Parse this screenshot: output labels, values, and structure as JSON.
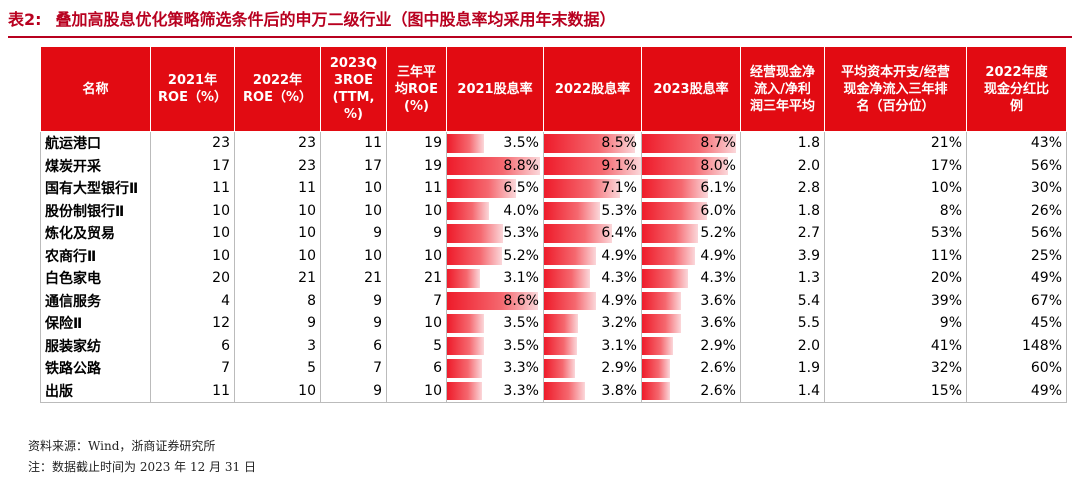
{
  "caption": {
    "table_no": "表2:",
    "text": "叠加高股息优化策略筛选条件后的申万二级行业（图中股息率均采用年末数据）"
  },
  "headers": [
    "名称",
    "2021年\nROE（%）",
    "2022年\nROE（%）",
    "2023Q\n3ROE\n(TTM,\n%)",
    "三年平\n均ROE\n(%)",
    "2021股息率",
    "2022股息率",
    "2023股息率",
    "经营现金净\n流入/净利\n润三年平均",
    "平均资本开支/经营\n现金净流入三年排\n名（百分位）",
    "2022年度\n现金分红比\n例"
  ],
  "colors": {
    "header_bg": "#e20b12",
    "accent": "#b8001f",
    "bar": "#ee1b2a"
  },
  "bar_max": 9.1,
  "rows": [
    {
      "name": "航运港口",
      "roe21": "23",
      "roe22": "23",
      "roe23": "11",
      "roe_avg": "19",
      "dy21": "3.5%",
      "dy22": "8.5%",
      "dy23": "8.7%",
      "cash": "1.8",
      "capex": "21%",
      "payout": "43%",
      "dy21_v": 3.5,
      "dy22_v": 8.5,
      "dy23_v": 8.7
    },
    {
      "name": "煤炭开采",
      "roe21": "17",
      "roe22": "23",
      "roe23": "17",
      "roe_avg": "19",
      "dy21": "8.8%",
      "dy22": "9.1%",
      "dy23": "8.0%",
      "cash": "2.0",
      "capex": "17%",
      "payout": "56%",
      "dy21_v": 8.8,
      "dy22_v": 9.1,
      "dy23_v": 8.0
    },
    {
      "name": "国有大型银行Ⅱ",
      "roe21": "11",
      "roe22": "11",
      "roe23": "10",
      "roe_avg": "11",
      "dy21": "6.5%",
      "dy22": "7.1%",
      "dy23": "6.1%",
      "cash": "2.8",
      "capex": "10%",
      "payout": "30%",
      "dy21_v": 6.5,
      "dy22_v": 7.1,
      "dy23_v": 6.1
    },
    {
      "name": "股份制银行Ⅱ",
      "roe21": "10",
      "roe22": "10",
      "roe23": "10",
      "roe_avg": "10",
      "dy21": "4.0%",
      "dy22": "5.3%",
      "dy23": "6.0%",
      "cash": "1.8",
      "capex": "8%",
      "payout": "26%",
      "dy21_v": 4.0,
      "dy22_v": 5.3,
      "dy23_v": 6.0
    },
    {
      "name": "炼化及贸易",
      "roe21": "10",
      "roe22": "10",
      "roe23": "9",
      "roe_avg": "9",
      "dy21": "5.3%",
      "dy22": "6.4%",
      "dy23": "5.2%",
      "cash": "2.7",
      "capex": "53%",
      "payout": "56%",
      "dy21_v": 5.3,
      "dy22_v": 6.4,
      "dy23_v": 5.2
    },
    {
      "name": "农商行Ⅱ",
      "roe21": "10",
      "roe22": "10",
      "roe23": "10",
      "roe_avg": "10",
      "dy21": "5.2%",
      "dy22": "4.9%",
      "dy23": "4.9%",
      "cash": "3.9",
      "capex": "11%",
      "payout": "25%",
      "dy21_v": 5.2,
      "dy22_v": 4.9,
      "dy23_v": 4.9
    },
    {
      "name": "白色家电",
      "roe21": "20",
      "roe22": "21",
      "roe23": "21",
      "roe_avg": "21",
      "dy21": "3.1%",
      "dy22": "4.3%",
      "dy23": "4.3%",
      "cash": "1.3",
      "capex": "20%",
      "payout": "49%",
      "dy21_v": 3.1,
      "dy22_v": 4.3,
      "dy23_v": 4.3
    },
    {
      "name": "通信服务",
      "roe21": "4",
      "roe22": "8",
      "roe23": "9",
      "roe_avg": "7",
      "dy21": "8.6%",
      "dy22": "4.9%",
      "dy23": "3.6%",
      "cash": "5.4",
      "capex": "39%",
      "payout": "67%",
      "dy21_v": 8.6,
      "dy22_v": 4.9,
      "dy23_v": 3.6
    },
    {
      "name": "保险Ⅱ",
      "roe21": "12",
      "roe22": "9",
      "roe23": "9",
      "roe_avg": "10",
      "dy21": "3.5%",
      "dy22": "3.2%",
      "dy23": "3.6%",
      "cash": "5.5",
      "capex": "9%",
      "payout": "45%",
      "dy21_v": 3.5,
      "dy22_v": 3.2,
      "dy23_v": 3.6
    },
    {
      "name": "服装家纺",
      "roe21": "6",
      "roe22": "3",
      "roe23": "6",
      "roe_avg": "5",
      "dy21": "3.5%",
      "dy22": "3.1%",
      "dy23": "2.9%",
      "cash": "2.0",
      "capex": "41%",
      "payout": "148%",
      "dy21_v": 3.5,
      "dy22_v": 3.1,
      "dy23_v": 2.9
    },
    {
      "name": "铁路公路",
      "roe21": "7",
      "roe22": "5",
      "roe23": "7",
      "roe_avg": "6",
      "dy21": "3.3%",
      "dy22": "2.9%",
      "dy23": "2.6%",
      "cash": "1.9",
      "capex": "32%",
      "payout": "60%",
      "dy21_v": 3.3,
      "dy22_v": 2.9,
      "dy23_v": 2.6
    },
    {
      "name": "出版",
      "roe21": "11",
      "roe22": "10",
      "roe23": "9",
      "roe_avg": "10",
      "dy21": "3.3%",
      "dy22": "3.8%",
      "dy23": "2.6%",
      "cash": "1.4",
      "capex": "15%",
      "payout": "49%",
      "dy21_v": 3.3,
      "dy22_v": 3.8,
      "dy23_v": 2.6
    }
  ],
  "footnotes": {
    "source": "资料来源：Wind，浙商证券研究所",
    "note": "注：数据截止时间为 2023 年 12 月 31 日"
  }
}
